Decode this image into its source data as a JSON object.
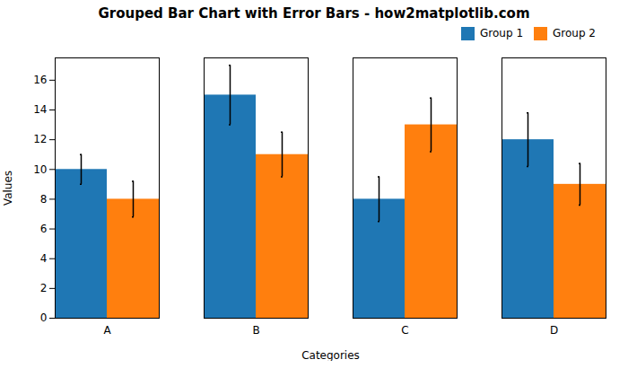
{
  "chart_data": {
    "type": "bar",
    "title": "Grouped Bar Chart with Error Bars - how2matplotlib.com",
    "xlabel": "Categories",
    "ylabel": "Values",
    "categories": [
      "A",
      "B",
      "C",
      "D"
    ],
    "series": [
      {
        "name": "Group 1",
        "color": "#1f77b4",
        "values": [
          10,
          15,
          8,
          12
        ],
        "errors": [
          1,
          2,
          1.5,
          1.8
        ]
      },
      {
        "name": "Group 2",
        "color": "#ff7f0e",
        "values": [
          8,
          11,
          13,
          9
        ],
        "errors": [
          1.2,
          1.5,
          1.8,
          1.4
        ]
      }
    ],
    "ylim": [
      0,
      17.5
    ],
    "yticks": [
      0,
      2,
      4,
      6,
      8,
      10,
      12,
      14,
      16
    ],
    "legend": "upper right",
    "grid": false
  }
}
